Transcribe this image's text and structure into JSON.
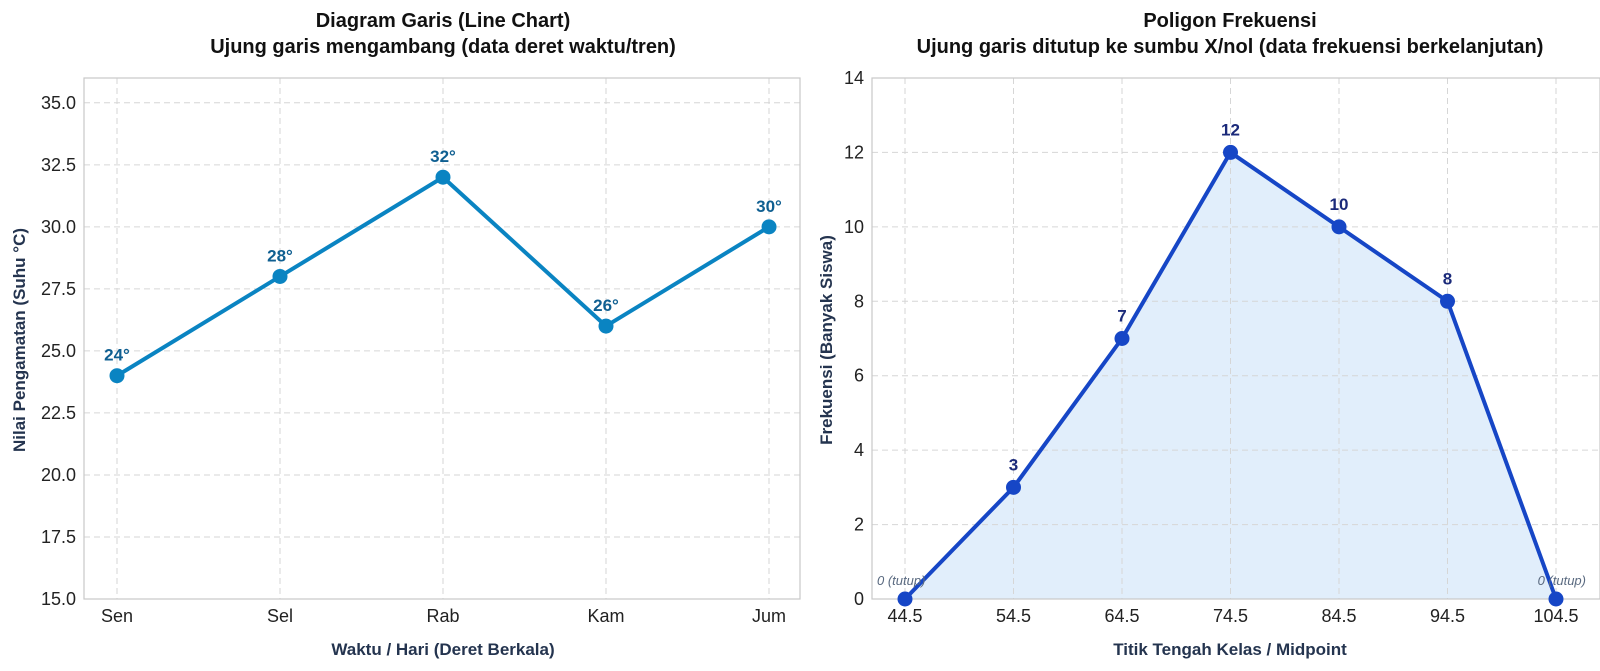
{
  "chart_data": [
    {
      "type": "line",
      "title": "Diagram Garis (Line Chart)",
      "subtitle": "Ujung garis mengambang (data deret waktu/tren)",
      "xlabel": "Waktu / Hari (Deret Berkala)",
      "ylabel": "Nilai Pengamatan (Suhu °C)",
      "categories": [
        "Sen",
        "Sel",
        "Rab",
        "Kam",
        "Jum"
      ],
      "values": [
        24,
        28,
        32,
        26,
        30
      ],
      "data_labels": [
        "24°",
        "28°",
        "32°",
        "26°",
        "30°"
      ],
      "ylim": [
        15,
        36
      ],
      "yticks": [
        "15.0",
        "17.5",
        "20.0",
        "22.5",
        "25.0",
        "27.5",
        "30.0",
        "32.5",
        "35.0"
      ],
      "grid": true,
      "color": "#0a84c2",
      "label_color": "#0f5f91"
    },
    {
      "type": "area",
      "title": "Poligon Frekuensi",
      "subtitle": "Ujung garis ditutup ke sumbu X/nol (data frekuensi berkelanjutan)",
      "xlabel": "Titik Tengah Kelas / Midpoint",
      "ylabel": "Frekuensi (Banyak Siswa)",
      "x": [
        44.5,
        54.5,
        64.5,
        74.5,
        84.5,
        94.5,
        104.5
      ],
      "values": [
        0,
        3,
        7,
        12,
        10,
        8,
        0
      ],
      "data_labels": [
        "",
        "3",
        "7",
        "12",
        "10",
        "8",
        ""
      ],
      "notes": [
        "0 (tutup)",
        "",
        "",
        "",
        "",
        "",
        "0 (tutup)"
      ],
      "xticks": [
        "44.5",
        "54.5",
        "64.5",
        "74.5",
        "84.5",
        "94.5",
        "104.5"
      ],
      "ylim": [
        0,
        14
      ],
      "yticks": [
        "0",
        "2",
        "4",
        "6",
        "8",
        "10",
        "12",
        "14"
      ],
      "grid": true,
      "color": "#1646c6",
      "fill_color": "#e1eefb",
      "label_color": "#1b2a7a"
    }
  ]
}
